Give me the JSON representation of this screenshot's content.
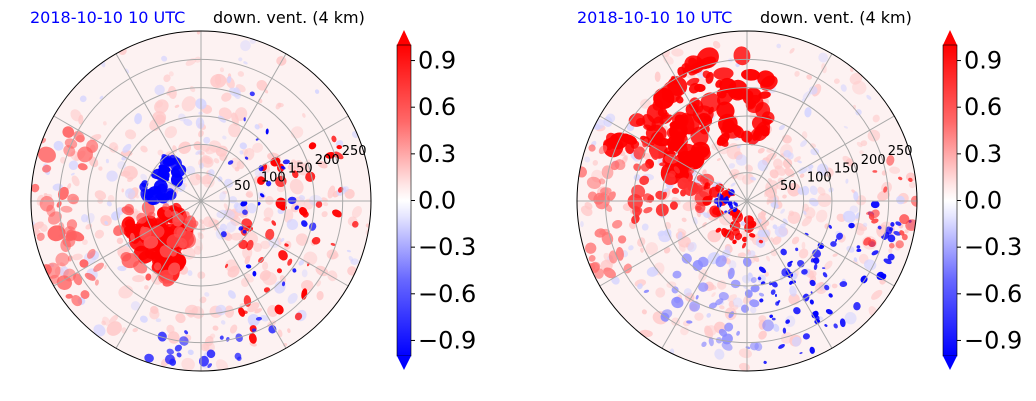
{
  "panels": [
    {
      "title_left": "2018-10-10 10 UTC",
      "title_right": "down. vent. (4 km)",
      "colorbar_ticks": [
        "0.9",
        "0.6",
        "0.3",
        "0.0",
        "−0.3",
        "−0.6",
        "−0.9"
      ]
    },
    {
      "title_left": "2018-10-10 10 UTC",
      "title_right": "down. vent. (4 km)",
      "colorbar_ticks": [
        "0.9",
        "0.6",
        "0.3",
        "0.0",
        "−0.3",
        "−0.6",
        "−0.9"
      ]
    }
  ],
  "chart_data": [
    {
      "type": "heatmap",
      "projection": "polar",
      "title": "2018-10-10 10 UTC    down. vent. (4 km)",
      "radial_ticks": [
        50,
        100,
        150,
        200,
        250
      ],
      "radial_max": 300,
      "angular_grid_deg": 30,
      "colorbar": {
        "min": -1.0,
        "max": 1.0,
        "ticks": [
          0.9,
          0.6,
          0.3,
          0.0,
          -0.3,
          -0.6,
          -0.9
        ],
        "cmap": "bwr",
        "extend": "both"
      },
      "features": [
        {
          "region": "southwest quadrant, r 50-120",
          "value": 0.9
        },
        {
          "region": "west inner ring, r 30-60",
          "value": -0.9
        },
        {
          "region": "east, r 100-200 scattered",
          "value": 0.9
        },
        {
          "region": "outer west/southwest rim",
          "value": 0.6
        }
      ]
    },
    {
      "type": "heatmap",
      "projection": "polar",
      "title": "2018-10-10 10 UTC    down. vent. (4 km)",
      "radial_ticks": [
        50,
        100,
        150,
        200,
        250
      ],
      "radial_max": 300,
      "angular_grid_deg": 30,
      "colorbar": {
        "min": -1.0,
        "max": 1.0,
        "ticks": [
          0.9,
          0.6,
          0.3,
          0.0,
          -0.3,
          -0.6,
          -0.9
        ],
        "cmap": "bwr",
        "extend": "both"
      },
      "features": [
        {
          "region": "north/northwest, r 80-230",
          "value": 0.9
        },
        {
          "region": "inner ring west/south, r 20-60",
          "value": 0.9
        },
        {
          "region": "southeast, r 120-260 scattered",
          "value": -0.9
        },
        {
          "region": "south, r 100-200 scattered",
          "value": -0.3
        }
      ]
    }
  ],
  "colors": {
    "strong_red": "#ff0000",
    "strong_blue": "#0000ff",
    "light_red": "#ffb0b0",
    "light_blue": "#c8c8ff",
    "neutral": "#fdf2f2",
    "grid": "#a9a9a9",
    "title_blue": "#0000ff"
  }
}
